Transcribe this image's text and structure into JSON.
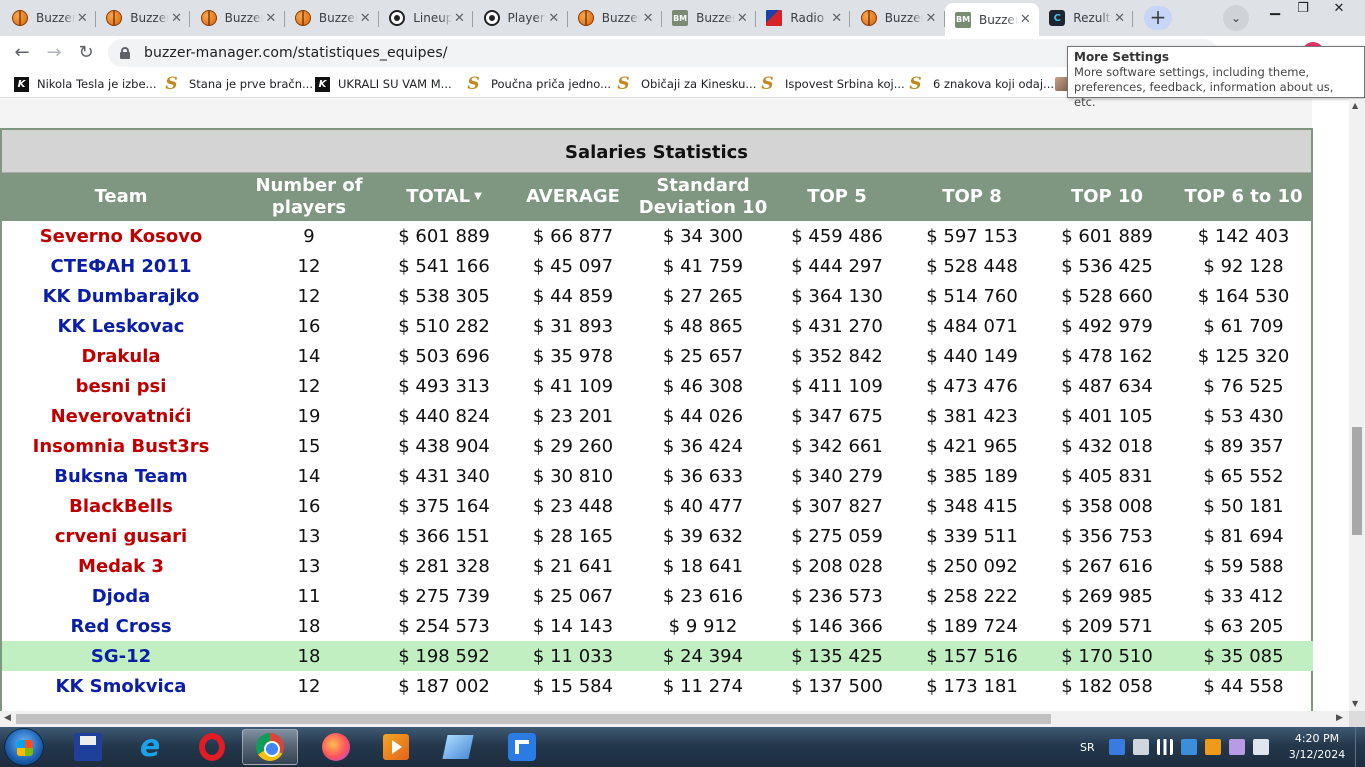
{
  "browser": {
    "tabs": [
      {
        "label": "Buzzer",
        "icon": "basketball-icon"
      },
      {
        "label": "Buzzer",
        "icon": "basketball-icon"
      },
      {
        "label": "Buzzer",
        "icon": "basketball-icon"
      },
      {
        "label": "Buzzer",
        "icon": "basketball-icon"
      },
      {
        "label": "Lineup",
        "icon": "soccer-ball-icon"
      },
      {
        "label": "Players",
        "icon": "soccer-ball-icon"
      },
      {
        "label": "Buzzer",
        "icon": "basketball-icon"
      },
      {
        "label": "Buzzer",
        "icon": "bm-logo-icon"
      },
      {
        "label": "Radio",
        "icon": "radio-flag-icon"
      },
      {
        "label": "Buzzer",
        "icon": "basketball-icon"
      },
      {
        "label": "Buzzer",
        "icon": "bm-logo-icon",
        "active": true
      },
      {
        "label": "Rezult",
        "icon": "rezult-icon"
      }
    ],
    "new_tab": "+",
    "address": "buzzer-manager.com/statistiques_equipes/",
    "bookmarks": [
      {
        "label": "Nikola Tesla je izbe...",
        "icon": "k-site-icon"
      },
      {
        "label": "Stana je prve bračn...",
        "icon": "s-site-icon"
      },
      {
        "label": "UKRALI SU VAM M...",
        "icon": "k-site-icon"
      },
      {
        "label": "Poučna priča jedno...",
        "icon": "s-site-icon"
      },
      {
        "label": "Običaji za Kinesku...",
        "icon": "s-site-icon"
      },
      {
        "label": "Ispovest Srbina koj...",
        "icon": "s-site-icon"
      },
      {
        "label": "6 znakova koji odaj...",
        "icon": "s-site-icon"
      }
    ],
    "tooltip": {
      "title": "More Settings",
      "body": "More software settings, including theme, preferences, feedback, information about us, etc."
    }
  },
  "page": {
    "panel_title": "Salaries Statistics",
    "columns": [
      "Team",
      "Number of players",
      "TOTAL",
      "AVERAGE",
      "Standard Deviation 10",
      "TOP 5",
      "TOP 8",
      "TOP 10",
      "TOP 6 to 10"
    ],
    "sort_indicator": "▼",
    "rows": [
      {
        "team": "Severno Kosovo",
        "color": "#c00000",
        "players": "9",
        "total": "$ 601 889",
        "average": "$ 66 877",
        "stddev": "$ 34 300",
        "top5": "$ 459 486",
        "top8": "$ 597 153",
        "top10": "$ 601 889",
        "top6_10": "$ 142 403"
      },
      {
        "team": "СТЕФАН 2011",
        "color": "#0b1ea6",
        "players": "12",
        "total": "$ 541 166",
        "average": "$ 45 097",
        "stddev": "$ 41 759",
        "top5": "$ 444 297",
        "top8": "$ 528 448",
        "top10": "$ 536 425",
        "top6_10": "$ 92 128"
      },
      {
        "team": "KK Dumbarajko",
        "color": "#0b1ea6",
        "players": "12",
        "total": "$ 538 305",
        "average": "$ 44 859",
        "stddev": "$ 27 265",
        "top5": "$ 364 130",
        "top8": "$ 514 760",
        "top10": "$ 528 660",
        "top6_10": "$ 164 530"
      },
      {
        "team": "KK Leskovac",
        "color": "#0b1ea6",
        "players": "16",
        "total": "$ 510 282",
        "average": "$ 31 893",
        "stddev": "$ 48 865",
        "top5": "$ 431 270",
        "top8": "$ 484 071",
        "top10": "$ 492 979",
        "top6_10": "$ 61 709"
      },
      {
        "team": "Drakula",
        "color": "#c00000",
        "players": "14",
        "total": "$ 503 696",
        "average": "$ 35 978",
        "stddev": "$ 25 657",
        "top5": "$ 352 842",
        "top8": "$ 440 149",
        "top10": "$ 478 162",
        "top6_10": "$ 125 320"
      },
      {
        "team": "besni psi",
        "color": "#c00000",
        "players": "12",
        "total": "$ 493 313",
        "average": "$ 41 109",
        "stddev": "$ 46 308",
        "top5": "$ 411 109",
        "top8": "$ 473 476",
        "top10": "$ 487 634",
        "top6_10": "$ 76 525"
      },
      {
        "team": "Neverovatnići",
        "color": "#c00000",
        "players": "19",
        "total": "$ 440 824",
        "average": "$ 23 201",
        "stddev": "$ 44 026",
        "top5": "$ 347 675",
        "top8": "$ 381 423",
        "top10": "$ 401 105",
        "top6_10": "$ 53 430"
      },
      {
        "team": "Insomnia Bust3rs",
        "color": "#c00000",
        "players": "15",
        "total": "$ 438 904",
        "average": "$ 29 260",
        "stddev": "$ 36 424",
        "top5": "$ 342 661",
        "top8": "$ 421 965",
        "top10": "$ 432 018",
        "top6_10": "$ 89 357"
      },
      {
        "team": "Buksna Team",
        "color": "#0b1ea6",
        "players": "14",
        "total": "$ 431 340",
        "average": "$ 30 810",
        "stddev": "$ 36 633",
        "top5": "$ 340 279",
        "top8": "$ 385 189",
        "top10": "$ 405 831",
        "top6_10": "$ 65 552"
      },
      {
        "team": "BlackBells",
        "color": "#c00000",
        "players": "16",
        "total": "$ 375 164",
        "average": "$ 23 448",
        "stddev": "$ 40 477",
        "top5": "$ 307 827",
        "top8": "$ 348 415",
        "top10": "$ 358 008",
        "top6_10": "$ 50 181"
      },
      {
        "team": "crveni gusari",
        "color": "#c00000",
        "players": "13",
        "total": "$ 366 151",
        "average": "$ 28 165",
        "stddev": "$ 39 632",
        "top5": "$ 275 059",
        "top8": "$ 339 511",
        "top10": "$ 356 753",
        "top6_10": "$ 81 694"
      },
      {
        "team": "Medak 3",
        "color": "#c00000",
        "players": "13",
        "total": "$ 281 328",
        "average": "$ 21 641",
        "stddev": "$ 18 641",
        "top5": "$ 208 028",
        "top8": "$ 250 092",
        "top10": "$ 267 616",
        "top6_10": "$ 59 588"
      },
      {
        "team": "Djoda",
        "color": "#0b1ea6",
        "players": "11",
        "total": "$ 275 739",
        "average": "$ 25 067",
        "stddev": "$ 23 616",
        "top5": "$ 236 573",
        "top8": "$ 258 222",
        "top10": "$ 269 985",
        "top6_10": "$ 33 412"
      },
      {
        "team": "Red Cross",
        "color": "#0b1ea6",
        "players": "18",
        "total": "$ 254 573",
        "average": "$ 14 143",
        "stddev": "$ 9 912",
        "top5": "$ 146 366",
        "top8": "$ 189 724",
        "top10": "$ 209 571",
        "top6_10": "$ 63 205"
      },
      {
        "team": "SG-12",
        "color": "#0b1ea6",
        "players": "18",
        "total": "$ 198 592",
        "average": "$ 11 033",
        "stddev": "$ 24 394",
        "top5": "$ 135 425",
        "top8": "$ 157 516",
        "top10": "$ 170 510",
        "top6_10": "$ 35 085",
        "highlight": true
      },
      {
        "team": "KK Smokvica",
        "color": "#0b1ea6",
        "players": "12",
        "total": "$ 187 002",
        "average": "$ 15 584",
        "stddev": "$ 11 274",
        "top5": "$ 137 500",
        "top8": "$ 173 181",
        "top10": "$ 182 058",
        "top6_10": "$ 44 558"
      }
    ]
  },
  "taskbar": {
    "language": "SR",
    "time": "4:20 PM",
    "date": "3/12/2024"
  }
}
